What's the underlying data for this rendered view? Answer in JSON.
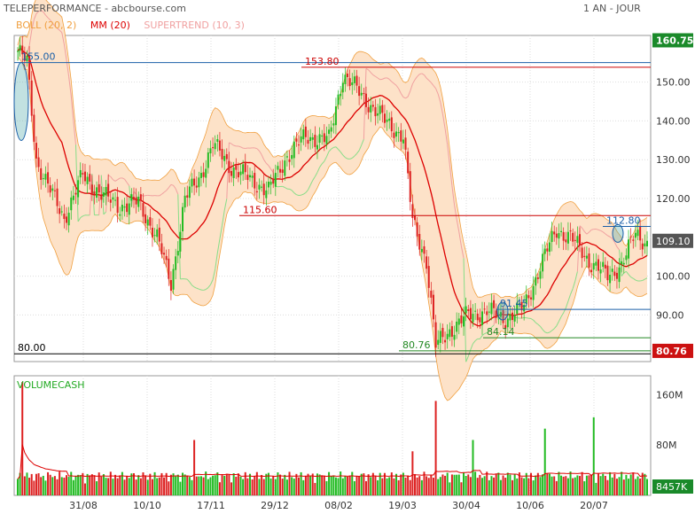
{
  "header": {
    "title": "TELEPERFORMANCE - abcbourse.com",
    "period": "1 AN - JOUR"
  },
  "legend": [
    {
      "label": "BOLL (20, 2)",
      "color": "#f0a040"
    },
    {
      "label": "MM (20)",
      "color": "#dd0000"
    },
    {
      "label": "SUPERTREND (10, 3)",
      "color": "#f0a0a0"
    }
  ],
  "volume_label": "VOLUMECASH",
  "colors": {
    "up": "#22bb22",
    "down": "#dd2222",
    "boll_fill": "#fde2c8",
    "boll_line": "#f0a040",
    "ma": "#dd0000",
    "supertrend": "#f0a0a0",
    "supertrend_up": "#88dd88",
    "hline_blue": "#1a5fa8",
    "hline_red": "#cc0000",
    "hline_green": "#228822"
  },
  "chart_data": [
    {
      "type": "candlestick",
      "title": "TELEPERFORMANCE",
      "x_ticks": [
        "31/08",
        "10/10",
        "17/11",
        "29/12",
        "08/02",
        "19/03",
        "30/04",
        "10/06",
        "20/07"
      ],
      "ylim": [
        78,
        162
      ],
      "y_ticks": [
        90,
        100,
        110,
        120,
        130,
        140,
        150
      ],
      "y_tick_labels": [
        "90.00",
        "100.00",
        "110.00",
        "120.00",
        "130.00",
        "140.00",
        "150.00"
      ],
      "last_price": "109.10",
      "max_label": "160.75",
      "min_label": "80.76",
      "close_anchors": [
        [
          0,
          158
        ],
        [
          4,
          155
        ],
        [
          8,
          130
        ],
        [
          14,
          122
        ],
        [
          20,
          115
        ],
        [
          28,
          126
        ],
        [
          36,
          121
        ],
        [
          44,
          118
        ],
        [
          52,
          119
        ],
        [
          60,
          110
        ],
        [
          66,
          98
        ],
        [
          72,
          120
        ],
        [
          78,
          125
        ],
        [
          84,
          134
        ],
        [
          92,
          128
        ],
        [
          100,
          125
        ],
        [
          108,
          122
        ],
        [
          116,
          131
        ],
        [
          124,
          136
        ],
        [
          134,
          135
        ],
        [
          140,
          152
        ],
        [
          146,
          148
        ],
        [
          152,
          144
        ],
        [
          158,
          140
        ],
        [
          166,
          136
        ],
        [
          170,
          114
        ],
        [
          176,
          104
        ],
        [
          180,
          82
        ],
        [
          186,
          86
        ],
        [
          194,
          90
        ],
        [
          202,
          91
        ],
        [
          210,
          89
        ],
        [
          218,
          92
        ],
        [
          226,
          104
        ],
        [
          232,
          112
        ],
        [
          238,
          110
        ],
        [
          246,
          104
        ],
        [
          254,
          100
        ],
        [
          260,
          103
        ],
        [
          266,
          111
        ],
        [
          270,
          109.1
        ]
      ],
      "annotations": [
        {
          "text": "155.00",
          "value": 155.0,
          "color": "#1a5fa8"
        },
        {
          "text": "153.80",
          "value": 153.8,
          "color": "#cc0000"
        },
        {
          "text": "115.60",
          "value": 115.6,
          "color": "#cc0000"
        },
        {
          "text": "112.80",
          "value": 112.8,
          "color": "#1a5fa8"
        },
        {
          "text": "91.45",
          "value": 91.45,
          "color": "#1a5fa8"
        },
        {
          "text": "84.14",
          "value": 84.14,
          "color": "#228822"
        },
        {
          "text": "80.76",
          "value": 80.76,
          "color": "#228822"
        },
        {
          "text": "80.00",
          "value": 80.0,
          "color": "#000000"
        }
      ]
    },
    {
      "type": "bar",
      "title": "VOLUMECASH",
      "ylim": [
        0,
        190
      ],
      "y_ticks": [
        80,
        160
      ],
      "y_tick_labels": [
        "80M",
        "160M"
      ],
      "last_label": "8457K"
    }
  ]
}
